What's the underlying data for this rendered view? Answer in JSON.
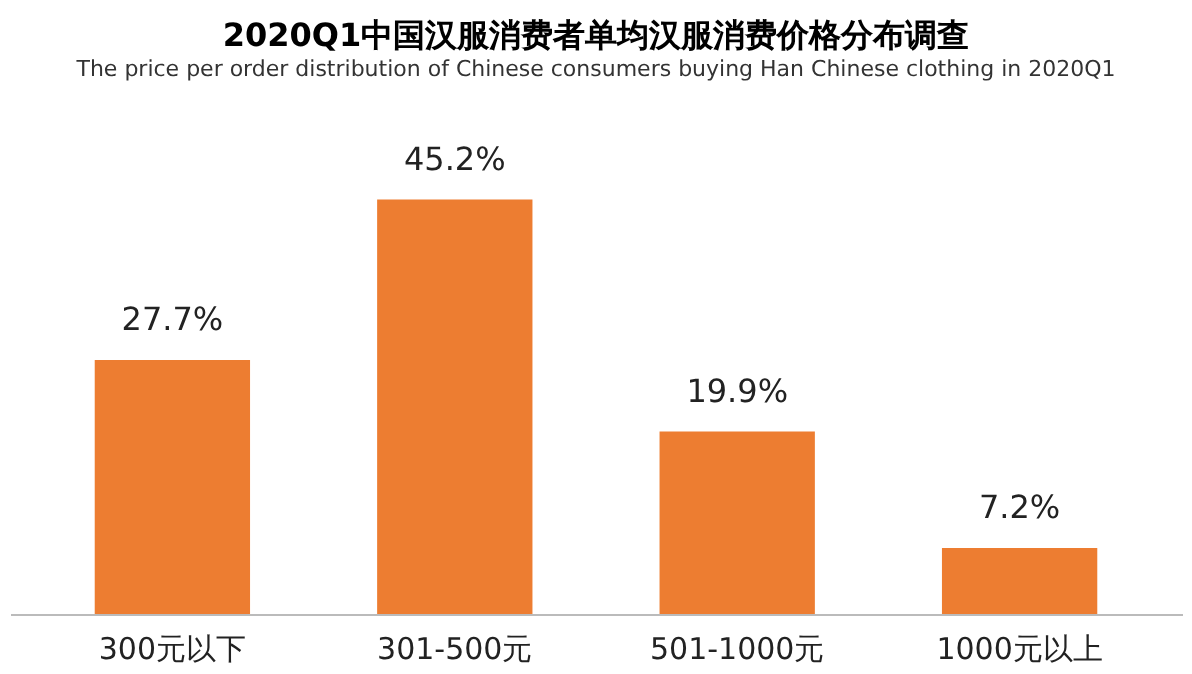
{
  "chart_data": {
    "type": "bar",
    "title": "2020Q1中国汉服消费者单均汉服消费价格分布调查",
    "subtitle": "The price per order distribution of Chinese consumers buying Han Chinese clothing in 2020Q1",
    "categories": [
      "300元以下",
      "301-500元",
      "501-1000元",
      "1000元以上"
    ],
    "values": [
      27.7,
      45.2,
      19.9,
      7.2
    ],
    "value_labels": [
      "27.7%",
      "45.2%",
      "19.9%",
      "7.2%"
    ],
    "color": "#ed7d31",
    "grid": false
  }
}
